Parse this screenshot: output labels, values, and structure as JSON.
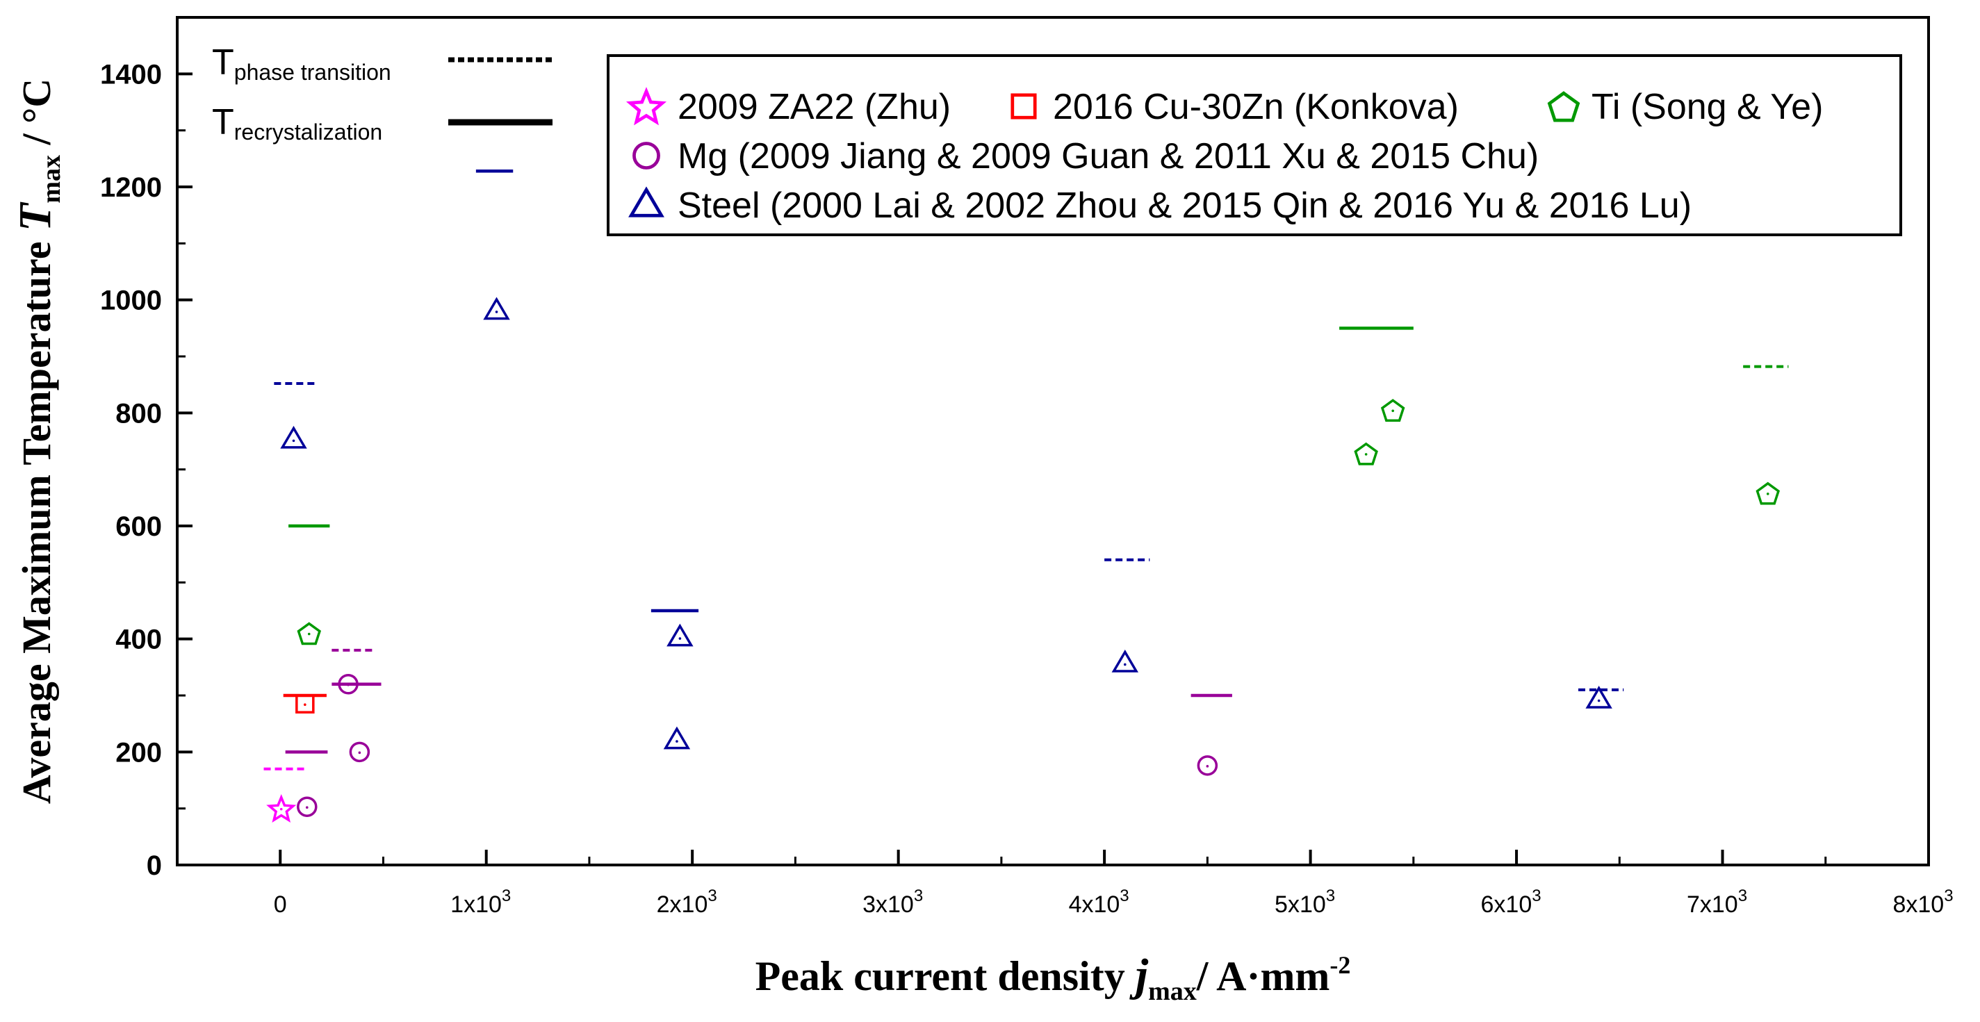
{
  "chart_data": {
    "type": "scatter",
    "ylabel": {
      "main": "Average Maximum Temperature ",
      "symbol": "T",
      "sub": "max",
      "unit": " / °C"
    },
    "xlabel": {
      "main": "Peak current density ",
      "symbol": "j",
      "sub": "max",
      "unit": "/ A·mm",
      "sup": "-2"
    },
    "xlim": [
      -500,
      8000
    ],
    "ylim": [
      0,
      1500
    ],
    "x_ticks": [
      {
        "value": 0,
        "label": "0"
      },
      {
        "value": 1000,
        "label": "1x10",
        "exp": "3"
      },
      {
        "value": 2000,
        "label": "2x10",
        "exp": "3"
      },
      {
        "value": 3000,
        "label": "3x10",
        "exp": "3"
      },
      {
        "value": 4000,
        "label": "4x10",
        "exp": "3"
      },
      {
        "value": 5000,
        "label": "5x10",
        "exp": "3"
      },
      {
        "value": 6000,
        "label": "6x10",
        "exp": "3"
      },
      {
        "value": 7000,
        "label": "7x10",
        "exp": "3"
      },
      {
        "value": 8000,
        "label": "8x10",
        "exp": "3"
      }
    ],
    "y_ticks": [
      0,
      200,
      400,
      600,
      800,
      1000,
      1200,
      1400
    ],
    "line_legend": {
      "phase": {
        "T": "T",
        "sub": "phase transition"
      },
      "recryst": {
        "T": "T",
        "sub": "recrystalization"
      }
    },
    "series": [
      {
        "name": "2009 ZA22 (Zhu)",
        "marker": "star",
        "color": "#ff00ff",
        "points": [
          {
            "x": 5,
            "y": 100
          }
        ],
        "phase_transition": [
          {
            "x0": -80,
            "x1": 130,
            "y": 170
          }
        ],
        "recrystallization": []
      },
      {
        "name": "2016 Cu-30Zn (Konkova)",
        "marker": "square",
        "color": "#ff0000",
        "points": [
          {
            "x": 120,
            "y": 285
          }
        ],
        "phase_transition": [],
        "recrystallization": [
          {
            "x0": 15,
            "x1": 225,
            "y": 300
          }
        ]
      },
      {
        "name": "Ti (Song & Ye)",
        "marker": "pentagon",
        "color": "#009900",
        "points": [
          {
            "x": 140,
            "y": 410
          },
          {
            "x": 5270,
            "y": 728
          },
          {
            "x": 5400,
            "y": 805
          },
          {
            "x": 7220,
            "y": 658
          }
        ],
        "phase_transition": [
          {
            "x0": 7100,
            "x1": 7320,
            "y": 882
          }
        ],
        "recrystallization": [
          {
            "x0": 40,
            "x1": 240,
            "y": 600
          },
          {
            "x0": 5140,
            "x1": 5500,
            "y": 950
          }
        ]
      },
      {
        "name": "Mg (2009 Jiang & 2009 Guan & 2011 Xu & 2015 Chu)",
        "marker": "circle",
        "color": "#990099",
        "points": [
          {
            "x": 130,
            "y": 103
          },
          {
            "x": 330,
            "y": 320
          },
          {
            "x": 385,
            "y": 200
          },
          {
            "x": 4500,
            "y": 176
          }
        ],
        "phase_transition": [
          {
            "x0": 250,
            "x1": 460,
            "y": 380
          }
        ],
        "recrystallization": [
          {
            "x0": 25,
            "x1": 230,
            "y": 200
          },
          {
            "x0": 250,
            "x1": 490,
            "y": 320
          },
          {
            "x0": 4420,
            "x1": 4620,
            "y": 300
          }
        ]
      },
      {
        "name": "Steel (2000 Lai & 2002 Zhou & 2015 Qin & 2016 Yu & 2016 Lu)",
        "marker": "triangle",
        "color": "#000099",
        "points": [
          {
            "x": 65,
            "y": 752
          },
          {
            "x": 1050,
            "y": 980
          },
          {
            "x": 1940,
            "y": 402
          },
          {
            "x": 1925,
            "y": 220
          },
          {
            "x": 4100,
            "y": 356
          },
          {
            "x": 6400,
            "y": 292
          }
        ],
        "phase_transition": [
          {
            "x0": -30,
            "x1": 180,
            "y": 852
          },
          {
            "x0": 4000,
            "x1": 4220,
            "y": 540
          },
          {
            "x0": 6300,
            "x1": 6520,
            "y": 310
          }
        ],
        "recrystallization": [
          {
            "x0": 950,
            "x1": 1130,
            "y": 1228
          },
          {
            "x0": 1800,
            "x1": 2030,
            "y": 450
          }
        ]
      }
    ]
  }
}
